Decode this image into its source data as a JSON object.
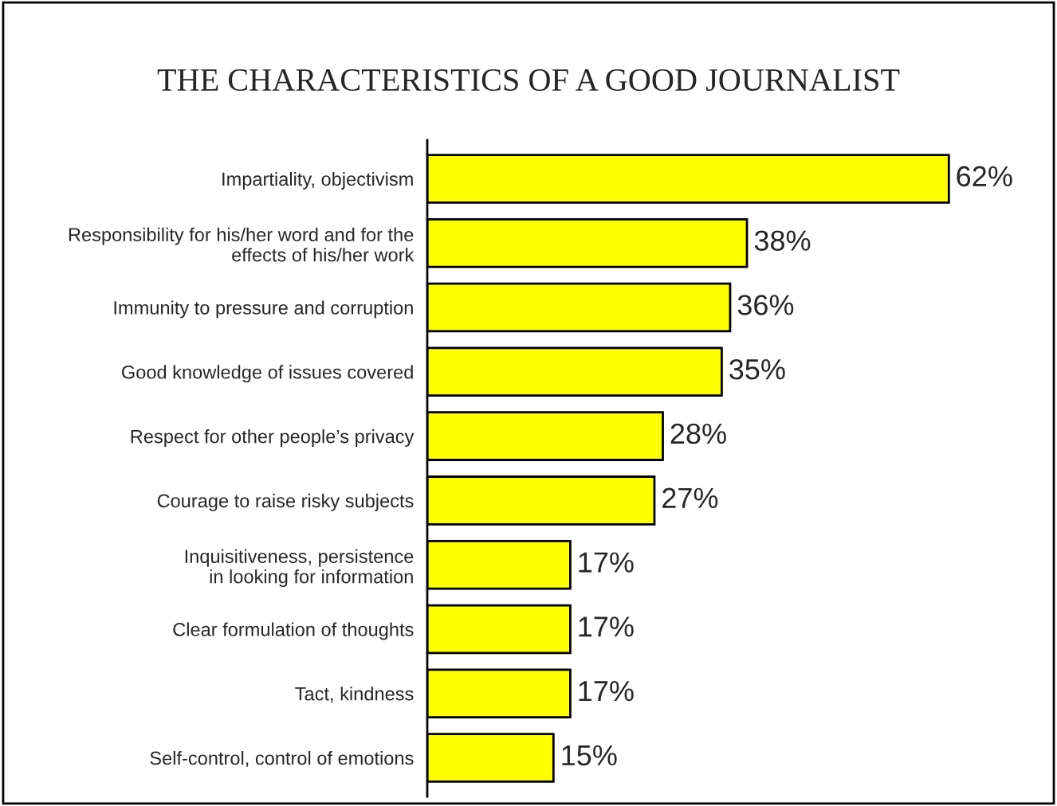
{
  "chart_data": {
    "type": "bar",
    "orientation": "horizontal",
    "title": "THE CHARACTERISTICS OF A GOOD JOURNALIST",
    "categories": [
      "Impartiality, objectivism",
      "Responsibility for his/her word and for the\neffects of his/her work",
      "Immunity to pressure and corruption",
      "Good knowledge of issues covered",
      "Respect for other people’s privacy",
      "Courage to raise risky subjects",
      "Inquisitiveness, persistence\nin looking for information",
      "Clear formulation of thoughts",
      "Tact, kindness",
      "Self-control, control of emotions"
    ],
    "values": [
      62,
      38,
      36,
      35,
      28,
      27,
      17,
      17,
      17,
      15
    ],
    "value_labels": [
      "62%",
      "38%",
      "36%",
      "35%",
      "28%",
      "27%",
      "17%",
      "17%",
      "17%",
      "15%"
    ],
    "color": "#ffff00",
    "grid": false,
    "legend": false
  }
}
